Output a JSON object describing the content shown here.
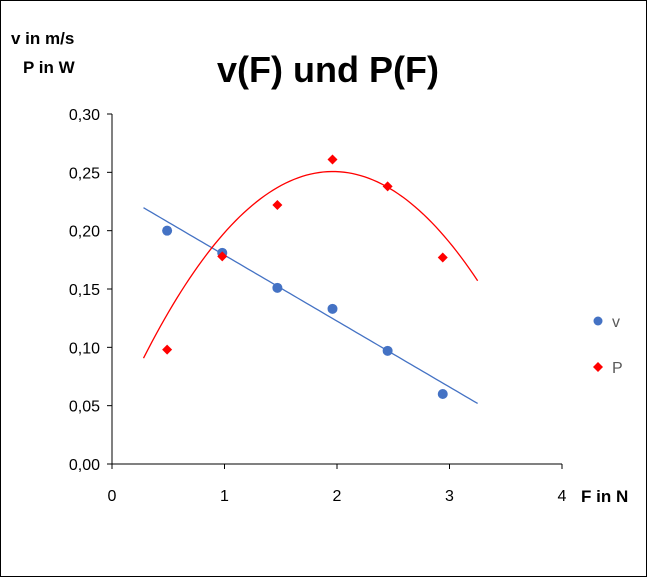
{
  "chart_data": {
    "type": "scatter",
    "title": "v(F) und P(F)",
    "ylabel_lines": [
      "v in m/s",
      "P in W"
    ],
    "xlabel": "F in N",
    "xlim": [
      0,
      4
    ],
    "ylim": [
      0,
      0.3
    ],
    "x_ticks": [
      0,
      1,
      2,
      3,
      4
    ],
    "x_tick_labels": [
      "0",
      "1",
      "2",
      "3",
      "4"
    ],
    "y_ticks": [
      0,
      0.05,
      0.1,
      0.15,
      0.2,
      0.25,
      0.3
    ],
    "y_tick_labels": [
      "0,00",
      "0,05",
      "0,10",
      "0,15",
      "0,20",
      "0,25",
      "0,30"
    ],
    "grid": false,
    "legend_position": "right",
    "series": [
      {
        "name": "v",
        "color": "#4472C4",
        "marker": "circle",
        "x": [
          0.49,
          0.98,
          1.47,
          1.96,
          2.45,
          2.94
        ],
        "y": [
          0.2,
          0.181,
          0.151,
          0.133,
          0.097,
          0.06
        ],
        "trendline": {
          "type": "linear",
          "slope": -0.0565,
          "intercept": 0.2355,
          "x_range": [
            0.28,
            3.25
          ]
        }
      },
      {
        "name": "P",
        "color": "#FF0000",
        "marker": "diamond",
        "x": [
          0.49,
          0.98,
          1.47,
          1.96,
          2.45,
          2.94
        ],
        "y": [
          0.098,
          0.178,
          0.222,
          0.261,
          0.238,
          0.177
        ],
        "trendline": {
          "type": "polynomial",
          "coefficients": [
            -0.0565,
            0.2218,
            0.033
          ],
          "x_range": [
            0.28,
            3.25
          ]
        }
      }
    ]
  }
}
